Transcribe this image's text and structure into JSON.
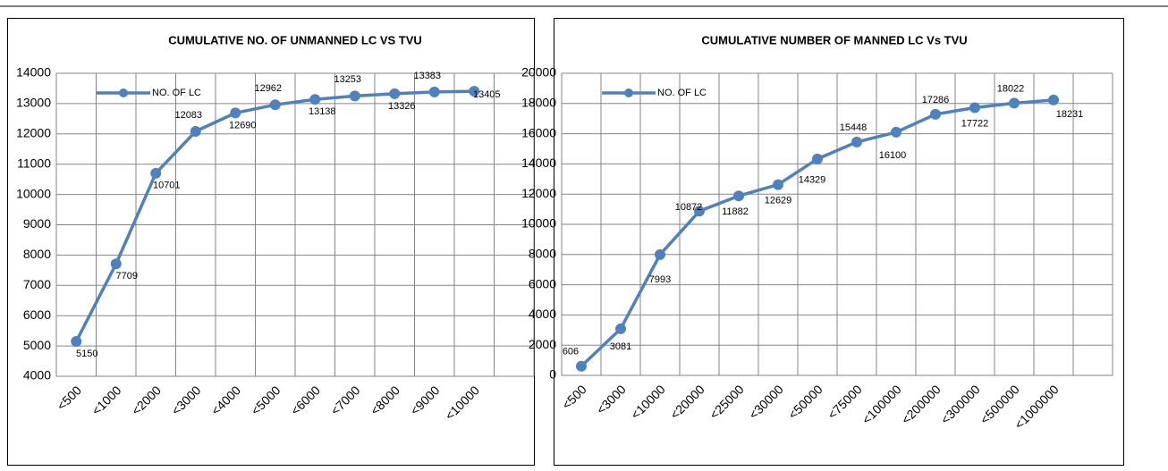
{
  "chart_data": [
    {
      "type": "line",
      "title": "CUMULATIVE NO. OF UNMANNED LC VS TVU",
      "categories": [
        "<500",
        "<1000",
        "<2000",
        "<3000",
        "<4000",
        "<5000",
        "<6000",
        "<7000",
        "<8000",
        "<9000",
        "<10000",
        null
      ],
      "series": [
        {
          "name": "NO. OF LC",
          "color": "#4f81bd",
          "values": [
            5150,
            7709,
            10701,
            12083,
            12690,
            12962,
            13138,
            13253,
            13326,
            13383,
            13405,
            null
          ]
        }
      ],
      "ylim": [
        4000,
        14000
      ],
      "yticks": [
        4000,
        5000,
        6000,
        7000,
        8000,
        9000,
        10000,
        11000,
        12000,
        13000,
        14000
      ],
      "grid": true,
      "legend": "upper left"
    },
    {
      "type": "line",
      "title": "CUMULATIVE  NUMBER OF MANNED LC Vs TVU",
      "categories": [
        "<500",
        "<3000",
        "<10000",
        "<20000",
        "<25000",
        "<30000",
        "<50000",
        "<75000",
        "<100000",
        "<200000",
        "<300000",
        "<500000",
        "<1000000",
        null
      ],
      "series": [
        {
          "name": "NO. OF LC",
          "color": "#4f81bd",
          "values": [
            606,
            3081,
            7993,
            10872,
            11882,
            12629,
            14329,
            15448,
            16100,
            17286,
            17722,
            18022,
            18231,
            null
          ]
        }
      ],
      "ylim": [
        0,
        20000
      ],
      "yticks": [
        0,
        2000,
        4000,
        6000,
        8000,
        10000,
        12000,
        14000,
        16000,
        18000,
        20000
      ],
      "grid": true,
      "legend": "upper left"
    }
  ]
}
